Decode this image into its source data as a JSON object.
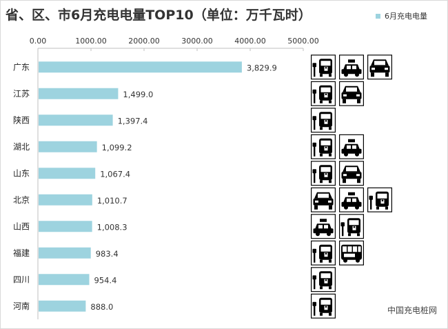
{
  "title": "省、区、市6月充电电量TOP10（单位：万千瓦时）",
  "watermark": "中国充电桩网",
  "chart_data": {
    "type": "bar",
    "orientation": "horizontal",
    "title": "省、区、市6月充电电量TOP10（单位：万千瓦时）",
    "xlabel": "",
    "ylabel": "",
    "xlim": [
      0,
      5000
    ],
    "tick_labels": [
      "0.00",
      "1000.00",
      "2000.00",
      "3000.00",
      "4000.00",
      "5000.00"
    ],
    "categories": [
      "广东",
      "江苏",
      "陕西",
      "湖北",
      "山东",
      "北京",
      "山西",
      "福建",
      "四川",
      "河南"
    ],
    "series": [
      {
        "name": "6月充电电量",
        "values": [
          3829.9,
          1499.0,
          1397.4,
          1099.2,
          1067.4,
          1010.7,
          1008.3,
          983.4,
          954.4,
          888.0
        ],
        "labels": [
          "3,829.9",
          "1,499.0",
          "1,397.4",
          "1,099.2",
          "1,067.4",
          "1,010.7",
          "1,008.3",
          "983.4",
          "954.4",
          "888.0"
        ]
      }
    ],
    "legend_position": "top-right",
    "grid": false,
    "bar_color": "#9dd3df",
    "vehicle_icons": [
      [
        "bus-icon",
        "taxi-icon",
        "car-icon"
      ],
      [
        "bus-icon",
        "car-icon"
      ],
      [
        "bus-icon"
      ],
      [
        "bus-icon",
        "taxi-icon"
      ],
      [
        "bus-icon",
        "car-icon"
      ],
      [
        "car-icon",
        "taxi-icon",
        "bus-icon"
      ],
      [
        "taxi-icon",
        "bus-icon"
      ],
      [
        "bus-icon",
        "coach-icon"
      ],
      [
        "bus-icon"
      ],
      [
        "bus-icon"
      ]
    ]
  }
}
